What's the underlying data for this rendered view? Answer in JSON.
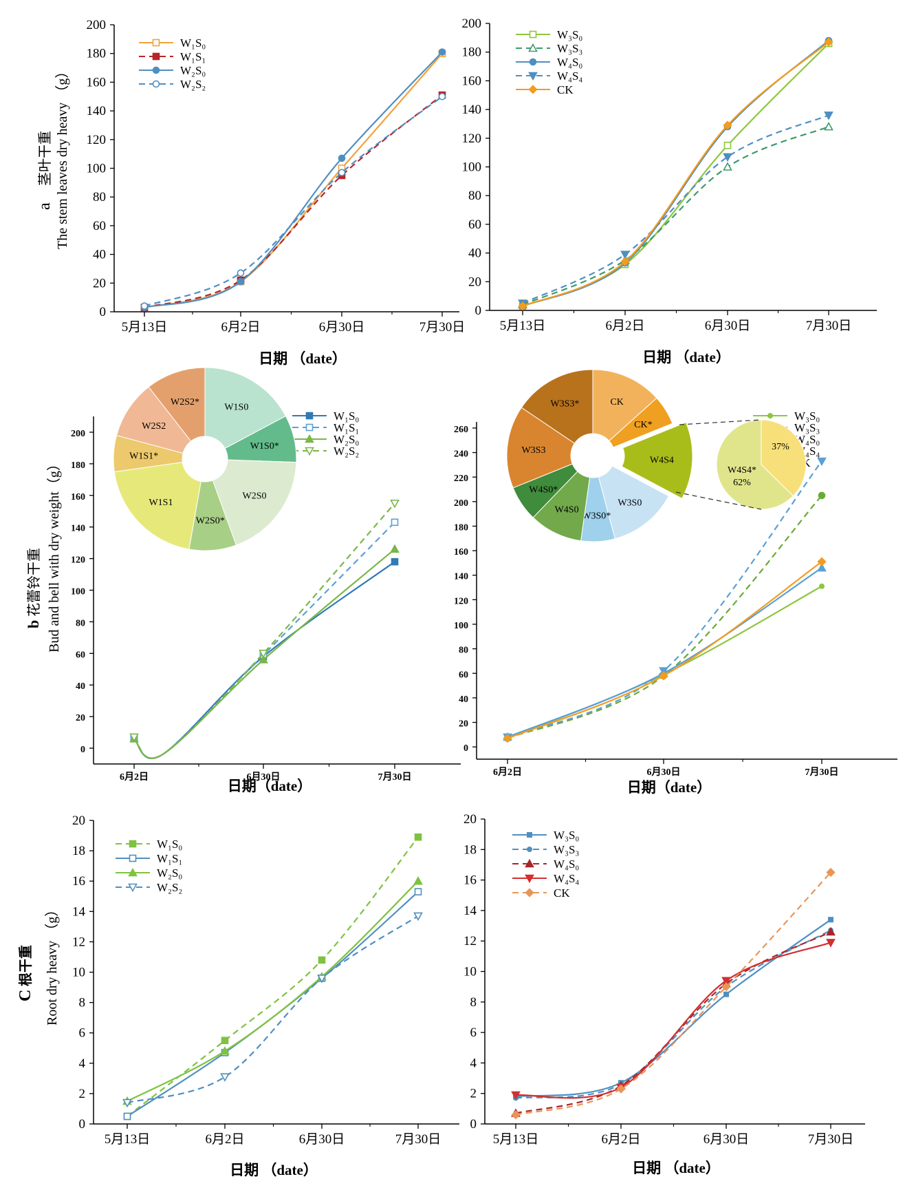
{
  "figure": {
    "background": "#ffffff"
  },
  "panel_labels": {
    "a": "a",
    "b": "b",
    "c": "C"
  },
  "chart_data": [
    {
      "id": "a-left",
      "type": "line",
      "ylabel_cn": "茎叶干重",
      "ylabel_en": "The stem leaves dry heavy （g）",
      "xlabel": "日期 （date）",
      "categories": [
        "5月13日",
        "6月2日",
        "6月30日",
        "7月30日"
      ],
      "yticks": [
        0,
        20,
        40,
        60,
        80,
        100,
        120,
        140,
        160,
        180,
        200
      ],
      "ylim": [
        0,
        200
      ],
      "legend_position": "top-left",
      "series": [
        {
          "name": "W₁S₀",
          "color": "#f4a13a",
          "dash": "solid",
          "marker": "square-open",
          "values": [
            3,
            21,
            100,
            180
          ]
        },
        {
          "name": "W₁S₁",
          "color": "#b5262a",
          "dash": "dash",
          "marker": "square",
          "values": [
            3,
            22,
            95,
            151
          ]
        },
        {
          "name": "W₂S₀",
          "color": "#4f8fc0",
          "dash": "solid",
          "marker": "circle",
          "values": [
            3,
            21,
            107,
            181
          ]
        },
        {
          "name": "W₂S₂",
          "color": "#4f8fc0",
          "dash": "dash",
          "marker": "circle-open",
          "values": [
            4,
            27,
            97,
            150
          ]
        }
      ]
    },
    {
      "id": "a-right",
      "type": "line",
      "xlabel": "日期 （date）",
      "categories": [
        "5月13日",
        "6月2日",
        "6月30日",
        "7月30日"
      ],
      "yticks": [
        0,
        20,
        40,
        60,
        80,
        100,
        120,
        140,
        160,
        180,
        200
      ],
      "ylim": [
        0,
        200
      ],
      "legend_position": "top-left",
      "series": [
        {
          "name": "W₃S₀",
          "color": "#8dc63f",
          "dash": "solid",
          "marker": "square-open",
          "values": [
            3,
            32,
            115,
            186
          ]
        },
        {
          "name": "W₃S₃",
          "color": "#3d9a6b",
          "dash": "dash",
          "marker": "triangle-open",
          "values": [
            4,
            35,
            100,
            128
          ]
        },
        {
          "name": "W₄S₀",
          "color": "#4f8fc0",
          "dash": "solid",
          "marker": "circle",
          "values": [
            3,
            33,
            128,
            188
          ]
        },
        {
          "name": "W₄S₄",
          "color": "#4f8fc0",
          "dash": "dash",
          "marker": "triangle-down",
          "values": [
            5,
            39,
            107,
            136
          ]
        },
        {
          "name": "CK",
          "color": "#f39c1f",
          "dash": "solid",
          "marker": "diamond",
          "values": [
            3,
            34,
            129,
            187
          ]
        }
      ]
    },
    {
      "id": "b-left",
      "type": "line",
      "ylabel_cn": "花蕾铃干重",
      "ylabel_en": "Bud and bell with dry weight（g）",
      "xlabel": "日期（date）",
      "categories": [
        "6月2日",
        "6月30日",
        "7月30日"
      ],
      "yticks": [
        0,
        20,
        40,
        60,
        80,
        100,
        120,
        140,
        160,
        180,
        200
      ],
      "ylim": [
        -10,
        210
      ],
      "legend_position": "top-right",
      "series": [
        {
          "name": "W₁S₀",
          "color": "#2f7bb6",
          "dash": "solid",
          "marker": "square",
          "values": [
            6,
            58,
            118
          ]
        },
        {
          "name": "W₁S₁",
          "color": "#5aa0d6",
          "dash": "dash",
          "marker": "square-open",
          "values": [
            6,
            59,
            143
          ]
        },
        {
          "name": "W₂S₀",
          "color": "#7ab648",
          "dash": "solid",
          "marker": "triangle",
          "values": [
            6,
            56,
            126
          ]
        },
        {
          "name": "W₂S₂",
          "color": "#7ab648",
          "dash": "dash",
          "marker": "triangle-down-open",
          "values": [
            7,
            60,
            155
          ]
        }
      ],
      "pie": {
        "type": "donut",
        "slices": [
          {
            "label": "W1S0",
            "color": "#b9e3cf"
          },
          {
            "label": "W1S0*",
            "color": "#63bb8b"
          },
          {
            "label": "W2S0",
            "color": "#dcebd0"
          },
          {
            "label": "W2S0*",
            "color": "#a8cf86"
          },
          {
            "label": "W1S1",
            "color": "#e6e97a"
          },
          {
            "label": "W1S1*",
            "color": "#ecc96c"
          },
          {
            "label": "W2S2",
            "color": "#f0b894"
          },
          {
            "label": "W2S2*",
            "color": "#e4a06c"
          }
        ]
      }
    },
    {
      "id": "b-right",
      "type": "line",
      "xlabel": "日期（date）",
      "categories": [
        "6月2日",
        "6月30日",
        "7月30日"
      ],
      "yticks": [
        0,
        20,
        40,
        60,
        80,
        100,
        120,
        140,
        160,
        180,
        200,
        220,
        240,
        260
      ],
      "ylim": [
        -10,
        265
      ],
      "legend_position": "top-right",
      "series": [
        {
          "name": "W₃S₀",
          "color": "#8dc63f",
          "dash": "solid",
          "marker": "circle-small",
          "values": [
            7,
            59,
            131
          ]
        },
        {
          "name": "W₃S₃",
          "color": "#6aaa36",
          "dash": "dash",
          "marker": "circle",
          "values": [
            7,
            58,
            205
          ]
        },
        {
          "name": "W₄S₀",
          "color": "#5aa0d6",
          "dash": "solid",
          "marker": "triangle",
          "values": [
            8,
            60,
            146
          ]
        },
        {
          "name": "W₄S₄",
          "color": "#5aa0d6",
          "dash": "dash",
          "marker": "triangle-down",
          "values": [
            8,
            62,
            233
          ]
        },
        {
          "name": "CK",
          "color": "#f39c1f",
          "dash": "solid",
          "marker": "diamond",
          "values": [
            7,
            58,
            151
          ]
        }
      ],
      "pie": {
        "type": "exploded-donut",
        "slices": [
          {
            "label": "CK",
            "color": "#f2b25c"
          },
          {
            "label": "CK*",
            "color": "#f0a020"
          },
          {
            "label": "W4S4",
            "color": "#a9bd1a"
          },
          {
            "label": "W3S0",
            "color": "#c7e2f3"
          },
          {
            "label": "W3S0*",
            "color": "#9fd0ec"
          },
          {
            "label": "W4S0",
            "color": "#72a94a"
          },
          {
            "label": "W4S0*",
            "color": "#3f8c3c"
          },
          {
            "label": "W3S3",
            "color": "#d9852f"
          },
          {
            "label": "W3S3*",
            "color": "#b8721c"
          }
        ],
        "detail": [
          {
            "label": "37%",
            "value": 37,
            "color": "#f7e07a"
          },
          {
            "label": "W4S4*",
            "sublabel": "62%",
            "value": 62,
            "color": "#e0e58c"
          }
        ]
      }
    },
    {
      "id": "c-left",
      "type": "line",
      "ylabel_cn": "根干重",
      "ylabel_en": "Root dry heavy （g）",
      "xlabel": "日期 （date）",
      "categories": [
        "5月13日",
        "6月2日",
        "6月30日",
        "7月30日"
      ],
      "yticks": [
        0,
        2,
        4,
        6,
        8,
        10,
        12,
        14,
        16,
        18,
        20
      ],
      "ylim": [
        0,
        20
      ],
      "legend_position": "top-left",
      "series": [
        {
          "name": "W₁S₀",
          "color": "#7fc241",
          "dash": "dash",
          "marker": "square",
          "values": [
            0.5,
            5.5,
            10.8,
            18.9
          ]
        },
        {
          "name": "W₁S₁",
          "color": "#4f8fc0",
          "dash": "solid",
          "marker": "square-open",
          "values": [
            0.5,
            4.7,
            9.6,
            15.3
          ]
        },
        {
          "name": "W₂S₀",
          "color": "#7fc241",
          "dash": "solid",
          "marker": "triangle",
          "values": [
            1.5,
            4.8,
            9.7,
            16.0
          ]
        },
        {
          "name": "W₂S₂",
          "color": "#4f8fc0",
          "dash": "dash",
          "marker": "triangle-down-open",
          "values": [
            1.4,
            3.1,
            9.6,
            13.7
          ]
        }
      ]
    },
    {
      "id": "c-right",
      "type": "line",
      "xlabel": "日期 （date）",
      "categories": [
        "5月13日",
        "6月2日",
        "6月30日",
        "7月30日"
      ],
      "yticks": [
        0,
        2,
        4,
        6,
        8,
        10,
        12,
        14,
        16,
        18,
        20
      ],
      "ylim": [
        0,
        20
      ],
      "legend_position": "top-left",
      "series": [
        {
          "name": "W₃S₀",
          "color": "#4f8fc0",
          "dash": "solid",
          "marker": "square-small",
          "values": [
            1.8,
            2.7,
            8.5,
            13.4
          ]
        },
        {
          "name": "W₃S₃",
          "color": "#4f8fc0",
          "dash": "dash",
          "marker": "circle-small",
          "values": [
            1.7,
            2.6,
            9.0,
            12.7
          ]
        },
        {
          "name": "W₄S₀",
          "color": "#a8262a",
          "dash": "dash",
          "marker": "triangle",
          "values": [
            0.7,
            2.5,
            9.2,
            12.6
          ]
        },
        {
          "name": "W₄S₄",
          "color": "#d32f2f",
          "dash": "solid",
          "marker": "triangle-down",
          "values": [
            1.9,
            2.4,
            9.4,
            11.9
          ]
        },
        {
          "name": "CK",
          "color": "#e8955a",
          "dash": "dash",
          "marker": "diamond",
          "values": [
            0.6,
            2.3,
            9.0,
            16.5
          ]
        }
      ]
    }
  ]
}
